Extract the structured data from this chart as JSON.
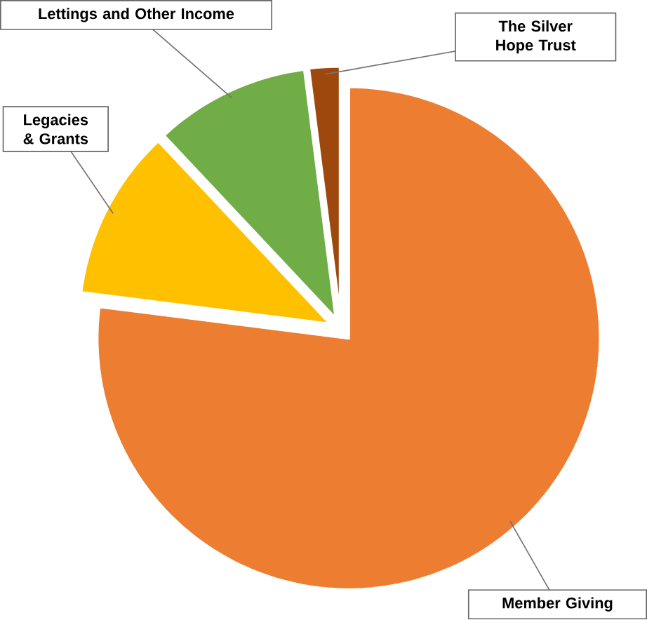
{
  "chart_data": {
    "type": "pie",
    "categories": [
      "Member Giving",
      "Legacies & Grants",
      "Lettings and Other Income",
      "The Silver Hope Trust"
    ],
    "values": [
      77,
      11,
      10,
      2
    ],
    "colors": [
      "#ed7d31",
      "#ffc000",
      "#70ad47",
      "#9e480e"
    ]
  }
}
